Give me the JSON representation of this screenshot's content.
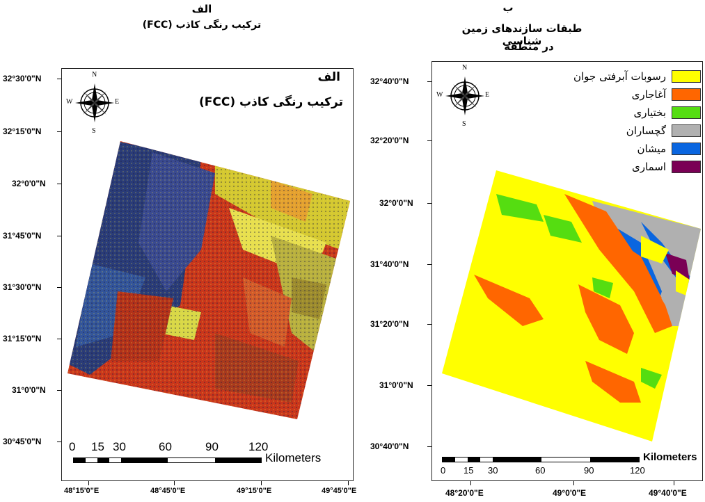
{
  "left_map": {
    "heading_letter": "الف",
    "heading_title": "ترکیب رنگی کاذب (FCC)",
    "inner_letter": "الف",
    "inner_title": "ترکیب رنگی کاذب (FCC)",
    "lat_labels": [
      "32°30'0\"N",
      "32°15'0\"N",
      "32°0'0\"N",
      "31°45'0\"N",
      "31°30'0\"N",
      "31°15'0\"N",
      "31°0'0\"N",
      "30°45'0\"N"
    ],
    "lon_labels": [
      "48°15'0\"E",
      "48°45'0\"E",
      "49°15'0\"E",
      "49°45'0\"E"
    ],
    "scale_numbers": [
      "0",
      "15",
      "30",
      "60",
      "90",
      "120"
    ],
    "scale_unit": "Kilometers",
    "north_arrow": {
      "n": "N",
      "s": "S",
      "e": "E",
      "w": "W"
    }
  },
  "right_map": {
    "heading_letter": "ب",
    "heading_line1": "طبقات سازندهای زمین شناسی",
    "heading_line2": "در منطقه",
    "lat_labels": [
      "32°40'0\"N",
      "32°20'0\"N",
      "32°0'0\"N",
      "31°40'0\"N",
      "31°20'0\"N",
      "31°0'0\"N",
      "30°40'0\"N"
    ],
    "lon_labels": [
      "48°20'0\"E",
      "49°0'0\"E",
      "49°40'0\"E"
    ],
    "scale_numbers": [
      "0",
      "15",
      "30",
      "60",
      "90",
      "120"
    ],
    "scale_unit": "Kilometers",
    "north_arrow": {
      "n": "N",
      "s": "S",
      "e": "E",
      "w": "W"
    },
    "legend": [
      {
        "label": "رسوبات آبرفتی جوان",
        "color": "#ffff00"
      },
      {
        "label": "آغاجاری",
        "color": "#ff6600"
      },
      {
        "label": "بختیاری",
        "color": "#55dd11"
      },
      {
        "label": "گچساران",
        "color": "#b0b0b0"
      },
      {
        "label": "میشان",
        "color": "#0a66e0"
      },
      {
        "label": "اسماری",
        "color": "#7a0055"
      }
    ]
  }
}
